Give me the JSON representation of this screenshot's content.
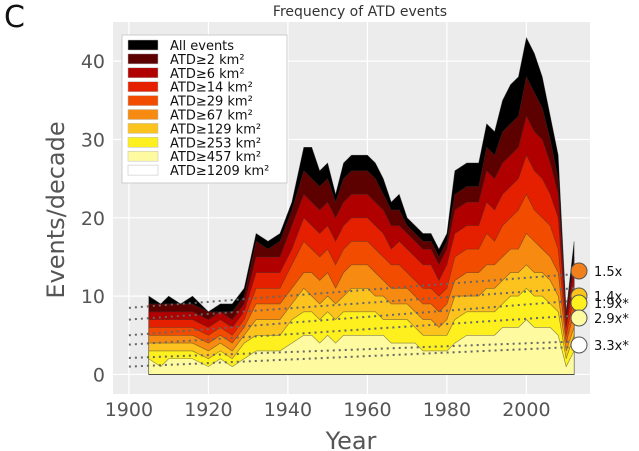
{
  "panel_letter": "C",
  "chart_data": {
    "type": "area",
    "title": "Frequency of ATD events",
    "xlabel": "Year",
    "ylabel": "Events/decade",
    "xlim": [
      1896,
      2016
    ],
    "ylim": [
      -2.5,
      45
    ],
    "x_ticks": [
      1900,
      1920,
      1940,
      1960,
      1980,
      2000
    ],
    "y_ticks": [
      0,
      10,
      20,
      30,
      40
    ],
    "grid": true,
    "legend_position": "top-left",
    "x": [
      1905,
      1908,
      1910,
      1913,
      1916,
      1920,
      1923,
      1926,
      1929,
      1932,
      1935,
      1938,
      1941,
      1944,
      1946,
      1948,
      1950,
      1952,
      1954,
      1956,
      1958,
      1960,
      1962,
      1964,
      1966,
      1968,
      1970,
      1972,
      1974,
      1976,
      1978,
      1980,
      1982,
      1985,
      1988,
      1990,
      1992,
      1994,
      1996,
      1998,
      2000,
      2002,
      2004,
      2006,
      2008,
      2010,
      2012
    ],
    "series": [
      {
        "name": "All events",
        "color": "#000000",
        "values": [
          10,
          9,
          10,
          9,
          10,
          8,
          9,
          9,
          11,
          18,
          17,
          18,
          22,
          29,
          29,
          26,
          27,
          23,
          27,
          28,
          28,
          28,
          27,
          25,
          22,
          23,
          20,
          19,
          18,
          18,
          16,
          18,
          26,
          27,
          27,
          32,
          31,
          35,
          37,
          38,
          43,
          41,
          38,
          33,
          28,
          8,
          17
        ]
      },
      {
        "name": "ATD≥2 km²",
        "color": "#5c0000",
        "values": [
          9,
          9,
          9,
          9,
          9,
          8,
          8,
          8,
          10,
          17,
          16,
          17,
          21,
          26,
          25,
          24,
          25,
          22,
          25,
          26,
          26,
          26,
          25,
          23,
          21,
          21,
          19,
          18,
          17,
          17,
          15,
          17,
          23,
          24,
          24,
          29,
          28,
          31,
          32,
          33,
          38,
          36,
          34,
          30,
          25,
          8,
          15
        ]
      },
      {
        "name": "ATD≥6 km²",
        "color": "#b00000",
        "values": [
          8,
          8,
          8,
          8,
          8,
          7,
          8,
          7,
          9,
          15,
          15,
          15,
          19,
          23,
          22,
          21,
          22,
          20,
          22,
          23,
          23,
          23,
          22,
          21,
          19,
          19,
          18,
          17,
          16,
          16,
          14,
          16,
          21,
          22,
          22,
          26,
          25,
          27,
          28,
          29,
          33,
          31,
          30,
          27,
          23,
          7,
          14
        ]
      },
      {
        "name": "ATD≥14 km²",
        "color": "#e52000",
        "values": [
          7,
          7,
          7,
          7,
          7,
          6,
          7,
          6,
          8,
          13,
          13,
          13,
          16,
          20,
          19,
          18,
          19,
          17,
          19,
          20,
          20,
          20,
          19,
          18,
          16,
          17,
          16,
          15,
          14,
          14,
          12,
          14,
          18,
          19,
          19,
          22,
          21,
          23,
          24,
          25,
          28,
          26,
          25,
          23,
          20,
          6,
          12
        ]
      },
      {
        "name": "ATD≥29 km²",
        "color": "#f24c00",
        "values": [
          6,
          6,
          6,
          6,
          6,
          5,
          6,
          5,
          7,
          11,
          11,
          11,
          14,
          17,
          16,
          15,
          16,
          14,
          16,
          17,
          17,
          17,
          16,
          15,
          14,
          14,
          13,
          12,
          11,
          11,
          10,
          11,
          15,
          16,
          16,
          18,
          17,
          19,
          20,
          21,
          23,
          21,
          20,
          19,
          16,
          5,
          10
        ]
      },
      {
        "name": "ATD≥67 km²",
        "color": "#f78a10",
        "values": [
          5,
          5,
          5,
          5,
          5,
          4,
          5,
          4,
          6,
          9,
          9,
          9,
          11,
          13,
          13,
          12,
          13,
          11,
          13,
          14,
          14,
          14,
          13,
          12,
          11,
          11,
          11,
          10,
          9,
          9,
          8,
          9,
          12,
          13,
          13,
          14,
          14,
          15,
          16,
          16,
          18,
          17,
          16,
          15,
          13,
          4,
          8
        ]
      },
      {
        "name": "ATD≥129 km²",
        "color": "#fcc21e",
        "values": [
          4,
          4,
          4,
          4,
          4,
          3,
          4,
          3,
          5,
          7,
          7,
          7,
          9,
          11,
          10,
          9,
          10,
          9,
          10,
          11,
          11,
          11,
          10,
          10,
          9,
          9,
          9,
          8,
          7,
          7,
          6,
          7,
          10,
          10,
          10,
          11,
          11,
          12,
          13,
          13,
          14,
          13,
          13,
          12,
          10,
          3,
          6
        ]
      },
      {
        "name": "ATD≥253 km²",
        "color": "#fdf01e",
        "values": [
          3,
          3,
          3,
          3,
          3,
          2,
          3,
          2,
          4,
          5,
          5,
          5,
          7,
          8,
          8,
          7,
          8,
          7,
          8,
          8,
          8,
          8,
          8,
          7,
          7,
          7,
          7,
          6,
          5,
          5,
          5,
          5,
          7,
          8,
          8,
          8,
          8,
          9,
          10,
          10,
          11,
          10,
          10,
          9,
          8,
          2,
          5
        ]
      },
      {
        "name": "ATD≥457 km²",
        "color": "#fefaa0",
        "values": [
          2,
          1,
          2,
          2,
          2,
          1,
          2,
          1,
          2,
          3,
          3,
          3,
          4,
          5,
          5,
          4,
          5,
          4,
          5,
          5,
          5,
          5,
          5,
          5,
          4,
          4,
          4,
          4,
          3,
          3,
          3,
          3,
          4,
          5,
          5,
          5,
          5,
          6,
          6,
          6,
          7,
          6,
          6,
          6,
          5,
          1,
          3
        ]
      },
      {
        "name": "ATD≥1209 km²",
        "color": "#ffffff",
        "values": [
          0,
          0,
          0,
          0,
          0,
          0,
          0,
          0,
          0,
          0,
          0,
          0,
          0,
          0,
          0,
          0,
          0,
          0,
          0,
          0,
          0,
          0,
          0,
          0,
          0,
          0,
          0,
          0,
          0,
          0,
          0,
          0,
          0,
          0,
          0,
          0,
          0,
          0,
          0,
          0,
          0,
          0,
          0,
          0,
          0,
          0,
          0
        ]
      }
    ],
    "trend_lines": [
      {
        "name": "ATD≥129 km² trend",
        "start": [
          1900,
          8.5
        ],
        "end": [
          2012,
          12.8
        ]
      },
      {
        "name": "ATD≥253 km² trend",
        "start": [
          1900,
          7
        ],
        "end": [
          2012,
          11
        ]
      },
      {
        "name": "ATD≥457 km² trend",
        "start": [
          1900,
          5
        ],
        "end": [
          2012,
          9.4
        ]
      },
      {
        "name": "ATD≥1209 km² trend",
        "start": [
          1900,
          3.8
        ],
        "end": [
          2012,
          7.5
        ]
      },
      {
        "name": "smallest trend",
        "start": [
          1900,
          2.1
        ],
        "end": [
          2012,
          4.2
        ]
      },
      {
        "name": "baseline trend",
        "start": [
          1900,
          1
        ],
        "end": [
          2012,
          3.5
        ]
      }
    ],
    "ratio_markers": [
      {
        "label": "1.5x",
        "value": 13,
        "color": "#f07f1d"
      },
      {
        "label": "1.4x",
        "value": 10.2,
        "color": "#fcc21e"
      },
      {
        "label": "1.9x*",
        "value": 8.6,
        "color": "#fdf01e"
      },
      {
        "label": "2.9x*",
        "value": 7.2,
        "color": "#fefaa0"
      },
      {
        "label": "3.3x*",
        "value": 3.8,
        "color": "#ffffff"
      }
    ]
  }
}
